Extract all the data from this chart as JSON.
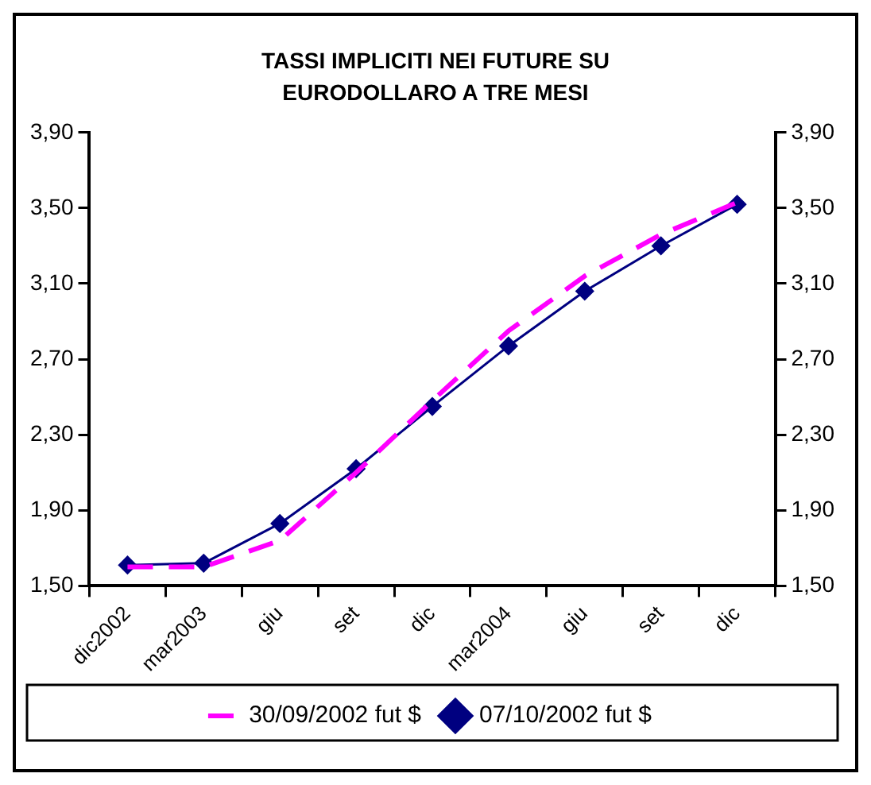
{
  "chart_data": {
    "type": "line",
    "title": "TASSI IMPLICITI NEI FUTURE SU EURODOLLARO A TRE MESI",
    "categories": [
      "dic2002",
      "mar2003",
      "giu",
      "set",
      "dic",
      "mar2004",
      "giu",
      "set",
      "dic"
    ],
    "series": [
      {
        "name": "30/09/2002 fut $",
        "color": "#ff00ff",
        "values": [
          1.6,
          1.6,
          1.74,
          2.1,
          2.48,
          2.85,
          3.14,
          3.36,
          3.53
        ],
        "marker": "none",
        "line_style": "dashed"
      },
      {
        "name": "07/10/2002 fut $",
        "color": "#000080",
        "values": [
          1.61,
          1.62,
          1.83,
          2.12,
          2.45,
          2.77,
          3.06,
          3.3,
          3.52
        ],
        "marker": "diamond",
        "line_style": "solid"
      }
    ],
    "ylim": [
      1.5,
      3.9
    ],
    "yticks": [
      {
        "value": 1.5,
        "label": "1,50"
      },
      {
        "value": 1.9,
        "label": "1,90"
      },
      {
        "value": 2.3,
        "label": "2,30"
      },
      {
        "value": 2.7,
        "label": "2,70"
      },
      {
        "value": 3.1,
        "label": "3,10"
      },
      {
        "value": 3.5,
        "label": "3,50"
      },
      {
        "value": 3.9,
        "label": "3,90"
      }
    ],
    "y2lim": [
      1.5,
      3.9
    ],
    "y2ticks": [
      {
        "value": 1.5,
        "label": "1,50"
      },
      {
        "value": 1.9,
        "label": "1,90"
      },
      {
        "value": 2.3,
        "label": "2,30"
      },
      {
        "value": 2.7,
        "label": "2,70"
      },
      {
        "value": 3.1,
        "label": "3,10"
      },
      {
        "value": 3.5,
        "label": "3,50"
      },
      {
        "value": 3.9,
        "label": "3,90"
      }
    ],
    "grid": false,
    "legend": "bottom"
  }
}
